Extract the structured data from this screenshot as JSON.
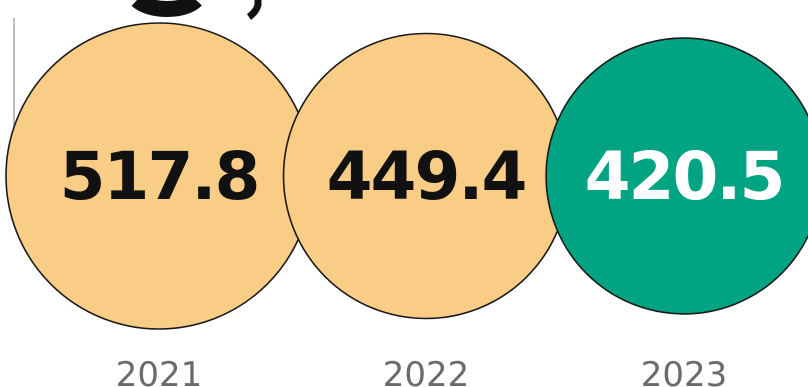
{
  "chart_data": {
    "type": "bubble",
    "categories": [
      "2021",
      "2022",
      "2023"
    ],
    "values": [
      517.8,
      449.4,
      420.5
    ],
    "value_labels": [
      "517.8",
      "449.4",
      "420.5"
    ],
    "colors": {
      "default_fill": "#FACD86",
      "highlight_fill": "#00A482",
      "outline": "#1a1a1a",
      "default_text": "#111111",
      "highlight_text": "#ffffff"
    },
    "highlight_index": 2,
    "bubble_area_proportional_to_value": true
  }
}
